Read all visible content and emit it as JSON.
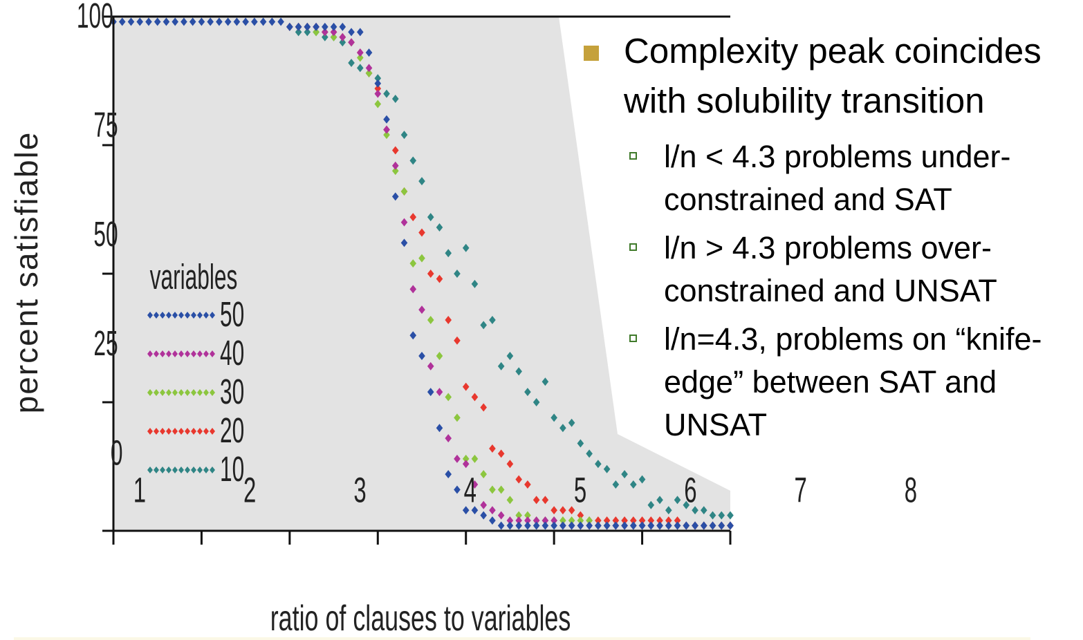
{
  "chart_data": {
    "type": "scatter",
    "xlabel": "ratio of clauses to variables",
    "ylabel": "percent satisfiable",
    "xlim": [
      1,
      8
    ],
    "ylim": [
      0,
      100
    ],
    "x_ticks": [
      "1",
      "2",
      "3",
      "4",
      "5",
      "6",
      "7",
      "8"
    ],
    "y_ticks": [
      "0",
      "25",
      "50",
      "75",
      "100"
    ],
    "legend_title": "variables",
    "legend_position": "left-middle",
    "background": "#e3e3e3",
    "series": [
      {
        "name": "50",
        "color": "#2a4fa6",
        "x": [
          1.0,
          1.1,
          1.2,
          1.3,
          1.4,
          1.5,
          1.6,
          1.7,
          1.8,
          1.9,
          2.0,
          2.1,
          2.2,
          2.3,
          2.4,
          2.5,
          2.6,
          2.7,
          2.8,
          2.9,
          3.0,
          3.1,
          3.2,
          3.3,
          3.4,
          3.5,
          3.6,
          3.7,
          3.8,
          3.9,
          4.0,
          4.1,
          4.2,
          4.3,
          4.4,
          4.5,
          4.6,
          4.7,
          4.8,
          4.9,
          5.0,
          5.1,
          5.2,
          5.3,
          5.4,
          5.5,
          5.6,
          5.7,
          5.8,
          5.9,
          6.0,
          6.1,
          6.2,
          6.3,
          6.4,
          6.5,
          6.6,
          6.7,
          6.8,
          6.9,
          7.0,
          7.1,
          7.2,
          7.3,
          7.4,
          7.5,
          7.6,
          7.7,
          7.8,
          7.9,
          8.0
        ],
        "y": [
          99,
          99,
          99,
          99,
          99,
          99,
          99,
          99,
          99,
          99,
          99,
          99,
          99,
          99,
          99,
          99,
          99,
          99,
          99,
          99,
          98,
          98,
          98,
          98,
          98,
          98,
          98,
          97,
          97,
          93,
          87,
          80,
          65,
          56,
          38,
          34,
          27,
          20,
          11,
          8,
          4,
          4,
          3,
          2,
          1,
          1,
          1,
          1,
          1,
          1,
          1,
          1,
          1,
          1,
          1,
          1,
          1,
          1,
          1,
          1,
          1,
          1,
          1,
          1,
          1,
          1,
          1,
          1,
          1,
          1,
          1
        ]
      },
      {
        "name": "40",
        "color": "#b0329a",
        "x": [
          3.0,
          3.1,
          3.2,
          3.3,
          3.4,
          3.5,
          3.6,
          3.7,
          3.8,
          3.9,
          4.0,
          4.1,
          4.2,
          4.3,
          4.4,
          4.5,
          4.6,
          4.7,
          4.8,
          4.9,
          5.0,
          5.1,
          5.2,
          5.3,
          5.4,
          5.5,
          5.6,
          5.7,
          5.8,
          5.9,
          6.0,
          6.1,
          6.2,
          6.3,
          6.4,
          6.5,
          6.6,
          6.7,
          6.8,
          6.9,
          7.0,
          7.1,
          7.2,
          7.3,
          7.4,
          7.5,
          7.6,
          7.7,
          7.8,
          7.9,
          8.0
        ],
        "y": [
          98,
          98,
          98,
          98,
          97,
          97,
          96,
          95,
          93,
          90,
          85,
          78,
          71,
          60,
          47,
          43,
          32,
          27,
          18,
          14,
          13,
          9,
          5,
          4,
          3,
          2,
          2,
          2,
          2,
          2,
          2,
          1,
          1,
          1,
          1,
          1,
          1,
          1,
          1,
          1,
          1,
          1,
          1,
          1,
          1,
          1,
          1,
          1,
          1,
          1,
          1
        ]
      },
      {
        "name": "30",
        "color": "#8cc63f",
        "x": [
          3.0,
          3.1,
          3.2,
          3.3,
          3.4,
          3.5,
          3.6,
          3.7,
          3.8,
          3.9,
          4.0,
          4.1,
          4.2,
          4.3,
          4.4,
          4.5,
          4.6,
          4.7,
          4.8,
          4.9,
          5.0,
          5.1,
          5.2,
          5.3,
          5.4,
          5.5,
          5.6,
          5.7,
          5.8,
          5.9,
          6.0,
          6.1,
          6.2,
          6.3,
          6.4,
          6.5,
          6.6,
          6.7,
          6.8,
          6.9,
          7.0,
          7.1,
          7.2,
          7.3,
          7.4,
          7.5,
          7.6,
          7.7,
          7.8,
          7.9,
          8.0
        ],
        "y": [
          98,
          98,
          98,
          97,
          97,
          96,
          96,
          95,
          92,
          89,
          83,
          77,
          70,
          66,
          52,
          53,
          41,
          34,
          26,
          22,
          14,
          14,
          11,
          8,
          8,
          6,
          3,
          3,
          2,
          2,
          2,
          2,
          2,
          2,
          2,
          1,
          1,
          1,
          1,
          1,
          1,
          1,
          1,
          1,
          1,
          1,
          1,
          1,
          1,
          1,
          1
        ]
      },
      {
        "name": "20",
        "color": "#e8382e",
        "x": [
          3.0,
          3.1,
          3.2,
          3.3,
          3.4,
          3.5,
          3.6,
          3.7,
          3.8,
          3.9,
          4.0,
          4.1,
          4.2,
          4.3,
          4.4,
          4.5,
          4.6,
          4.7,
          4.8,
          4.9,
          5.0,
          5.1,
          5.2,
          5.3,
          5.4,
          5.5,
          5.6,
          5.7,
          5.8,
          5.9,
          6.0,
          6.1,
          6.2,
          6.3,
          6.4,
          6.5,
          6.6,
          6.7,
          6.8,
          6.9,
          7.0,
          7.1,
          7.2,
          7.3,
          7.4,
          7.5,
          7.6,
          7.7,
          7.8,
          7.9,
          8.0
        ],
        "y": [
          98,
          98,
          98,
          98,
          97,
          97,
          96,
          95,
          93,
          89,
          86,
          78,
          74,
          66,
          61,
          58,
          50,
          49,
          41,
          37,
          28,
          26,
          24,
          16,
          15,
          13,
          10,
          9,
          6,
          6,
          4,
          4,
          4,
          3,
          2,
          2,
          2,
          2,
          2,
          2,
          2,
          2,
          2,
          2,
          2,
          1,
          1,
          1,
          1,
          1,
          1
        ]
      },
      {
        "name": "10",
        "color": "#2f8585",
        "x": [
          3.0,
          3.1,
          3.2,
          3.3,
          3.4,
          3.5,
          3.6,
          3.7,
          3.8,
          3.9,
          4.0,
          4.1,
          4.2,
          4.3,
          4.4,
          4.5,
          4.6,
          4.7,
          4.8,
          4.9,
          5.0,
          5.1,
          5.2,
          5.3,
          5.4,
          5.5,
          5.6,
          5.7,
          5.8,
          5.9,
          6.0,
          6.1,
          6.2,
          6.3,
          6.4,
          6.5,
          6.6,
          6.7,
          6.8,
          6.9,
          7.0,
          7.1,
          7.2,
          7.3,
          7.4,
          7.5,
          7.6,
          7.7,
          7.8,
          7.9,
          8.0
        ],
        "y": [
          98,
          97,
          97,
          97,
          96,
          96,
          95,
          91,
          90,
          89,
          88,
          85,
          84,
          77,
          72,
          68,
          61,
          59,
          54,
          50,
          55,
          48,
          40,
          41,
          32,
          34,
          31,
          27,
          25,
          29,
          22,
          20,
          21,
          17,
          15,
          13,
          12,
          9,
          11,
          9,
          10,
          5,
          6,
          4,
          6,
          5,
          4,
          4,
          3,
          3,
          3
        ]
      }
    ]
  },
  "bullets": {
    "main": "Complexity peak coincides with solubility transition",
    "sub": [
      "l/n < 4.3 problems under-constrained and SAT",
      "l/n > 4.3 problems over-constrained and UNSAT",
      "l/n=4.3, problems on “knife-edge” between SAT and UNSAT"
    ],
    "main_marker_color": "#c5a13b",
    "sub_marker_color": "#3f7a2a"
  }
}
